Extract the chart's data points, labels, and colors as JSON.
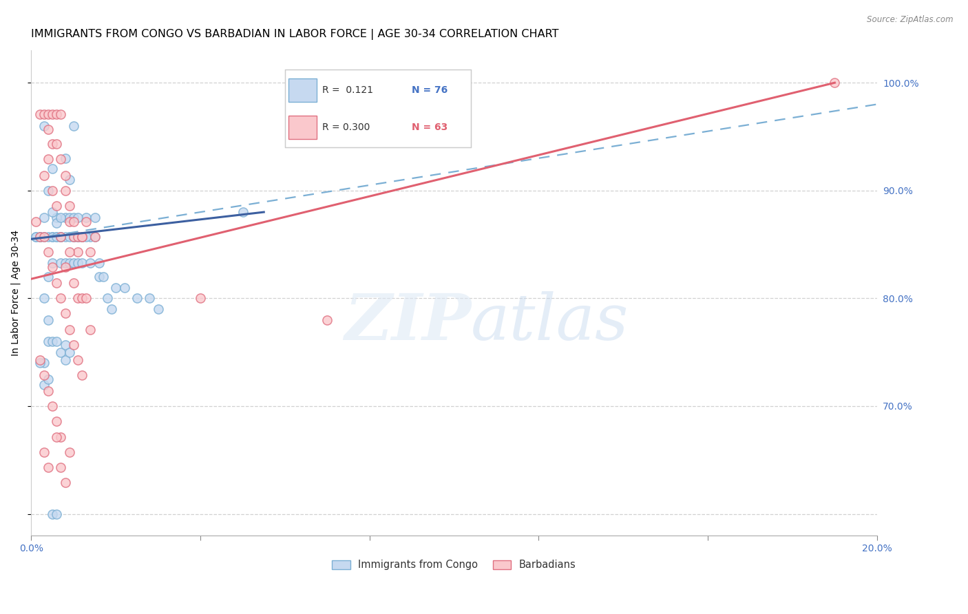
{
  "title": "IMMIGRANTS FROM CONGO VS BARBADIAN IN LABOR FORCE | AGE 30-34 CORRELATION CHART",
  "source": "Source: ZipAtlas.com",
  "ylabel": "In Labor Force | Age 30-34",
  "xlim": [
    0.0,
    0.2
  ],
  "ylim": [
    0.58,
    1.03
  ],
  "yticks": [
    0.7,
    0.8,
    0.9,
    1.0
  ],
  "ytick_labels": [
    "70.0%",
    "80.0%",
    "90.0%",
    "100.0%"
  ],
  "xticks": [
    0.0,
    0.04,
    0.08,
    0.12,
    0.16,
    0.2
  ],
  "xtick_labels": [
    "0.0%",
    "",
    "",
    "",
    "",
    "20.0%"
  ],
  "legend_label1": "Immigrants from Congo",
  "legend_label2": "Barbadians",
  "congo_scatter": [
    [
      0.001,
      0.857
    ],
    [
      0.002,
      0.857
    ],
    [
      0.003,
      0.875
    ],
    [
      0.004,
      0.9
    ],
    [
      0.005,
      0.833
    ],
    [
      0.005,
      0.857
    ],
    [
      0.006,
      0.857
    ],
    [
      0.006,
      0.875
    ],
    [
      0.007,
      0.857
    ],
    [
      0.007,
      0.857
    ],
    [
      0.008,
      0.875
    ],
    [
      0.008,
      0.857
    ],
    [
      0.009,
      0.857
    ],
    [
      0.009,
      0.875
    ],
    [
      0.01,
      0.857
    ],
    [
      0.01,
      0.857
    ],
    [
      0.011,
      0.857
    ],
    [
      0.012,
      0.857
    ],
    [
      0.013,
      0.875
    ],
    [
      0.014,
      0.857
    ],
    [
      0.005,
      0.92
    ],
    [
      0.008,
      0.93
    ],
    [
      0.009,
      0.91
    ],
    [
      0.003,
      0.96
    ],
    [
      0.01,
      0.96
    ],
    [
      0.005,
      0.88
    ],
    [
      0.006,
      0.87
    ],
    [
      0.004,
      0.82
    ],
    [
      0.003,
      0.8
    ],
    [
      0.004,
      0.78
    ],
    [
      0.004,
      0.76
    ],
    [
      0.003,
      0.74
    ],
    [
      0.002,
      0.74
    ],
    [
      0.005,
      0.76
    ],
    [
      0.006,
      0.76
    ],
    [
      0.007,
      0.75
    ],
    [
      0.008,
      0.757
    ],
    [
      0.008,
      0.743
    ],
    [
      0.009,
      0.75
    ],
    [
      0.003,
      0.72
    ],
    [
      0.004,
      0.725
    ],
    [
      0.005,
      0.6
    ],
    [
      0.006,
      0.6
    ],
    [
      0.05,
      0.88
    ],
    [
      0.001,
      0.857
    ],
    [
      0.002,
      0.857
    ],
    [
      0.003,
      0.857
    ],
    [
      0.004,
      0.857
    ],
    [
      0.005,
      0.857
    ],
    [
      0.006,
      0.857
    ],
    [
      0.007,
      0.857
    ],
    [
      0.007,
      0.875
    ],
    [
      0.007,
      0.833
    ],
    [
      0.008,
      0.833
    ],
    [
      0.009,
      0.833
    ],
    [
      0.01,
      0.833
    ],
    [
      0.01,
      0.875
    ],
    [
      0.011,
      0.833
    ],
    [
      0.011,
      0.857
    ],
    [
      0.011,
      0.875
    ],
    [
      0.012,
      0.833
    ],
    [
      0.012,
      0.857
    ],
    [
      0.013,
      0.857
    ],
    [
      0.014,
      0.833
    ],
    [
      0.015,
      0.857
    ],
    [
      0.015,
      0.875
    ],
    [
      0.016,
      0.82
    ],
    [
      0.016,
      0.833
    ],
    [
      0.017,
      0.82
    ],
    [
      0.018,
      0.8
    ],
    [
      0.019,
      0.79
    ],
    [
      0.02,
      0.81
    ],
    [
      0.022,
      0.81
    ],
    [
      0.025,
      0.8
    ],
    [
      0.028,
      0.8
    ],
    [
      0.03,
      0.79
    ]
  ],
  "barbadian_scatter": [
    [
      0.002,
      0.971
    ],
    [
      0.003,
      0.971
    ],
    [
      0.004,
      0.971
    ],
    [
      0.005,
      0.971
    ],
    [
      0.006,
      0.971
    ],
    [
      0.007,
      0.971
    ],
    [
      0.004,
      0.957
    ],
    [
      0.005,
      0.943
    ],
    [
      0.006,
      0.943
    ],
    [
      0.007,
      0.929
    ],
    [
      0.008,
      0.914
    ],
    [
      0.008,
      0.9
    ],
    [
      0.009,
      0.886
    ],
    [
      0.009,
      0.871
    ],
    [
      0.01,
      0.871
    ],
    [
      0.01,
      0.857
    ],
    [
      0.011,
      0.857
    ],
    [
      0.011,
      0.843
    ],
    [
      0.012,
      0.857
    ],
    [
      0.012,
      0.857
    ],
    [
      0.013,
      0.871
    ],
    [
      0.014,
      0.843
    ],
    [
      0.015,
      0.857
    ],
    [
      0.003,
      0.914
    ],
    [
      0.004,
      0.929
    ],
    [
      0.005,
      0.9
    ],
    [
      0.006,
      0.886
    ],
    [
      0.007,
      0.857
    ],
    [
      0.008,
      0.829
    ],
    [
      0.009,
      0.843
    ],
    [
      0.01,
      0.814
    ],
    [
      0.011,
      0.8
    ],
    [
      0.012,
      0.8
    ],
    [
      0.013,
      0.8
    ],
    [
      0.014,
      0.771
    ],
    [
      0.001,
      0.871
    ],
    [
      0.002,
      0.857
    ],
    [
      0.003,
      0.857
    ],
    [
      0.004,
      0.843
    ],
    [
      0.005,
      0.829
    ],
    [
      0.006,
      0.814
    ],
    [
      0.007,
      0.8
    ],
    [
      0.008,
      0.786
    ],
    [
      0.009,
      0.771
    ],
    [
      0.01,
      0.757
    ],
    [
      0.011,
      0.743
    ],
    [
      0.012,
      0.729
    ],
    [
      0.002,
      0.743
    ],
    [
      0.003,
      0.729
    ],
    [
      0.004,
      0.714
    ],
    [
      0.005,
      0.7
    ],
    [
      0.006,
      0.686
    ],
    [
      0.007,
      0.671
    ],
    [
      0.003,
      0.657
    ],
    [
      0.004,
      0.643
    ],
    [
      0.008,
      0.629
    ],
    [
      0.006,
      0.671
    ],
    [
      0.009,
      0.657
    ],
    [
      0.007,
      0.643
    ],
    [
      0.19,
      1.0
    ],
    [
      0.04,
      0.8
    ],
    [
      0.07,
      0.78
    ]
  ],
  "congo_line_x": [
    0.0,
    0.055
  ],
  "congo_line_y": [
    0.855,
    0.88
  ],
  "barbadian_line_x": [
    0.0,
    0.19
  ],
  "barbadian_line_y": [
    0.818,
    1.0
  ],
  "dashed_line_x": [
    0.0,
    0.2
  ],
  "dashed_line_y": [
    0.855,
    0.98
  ],
  "background_color": "#ffffff",
  "grid_color": "#cccccc",
  "scatter_size": 90,
  "title_fontsize": 11.5,
  "axis_label_fontsize": 10,
  "tick_fontsize": 10
}
